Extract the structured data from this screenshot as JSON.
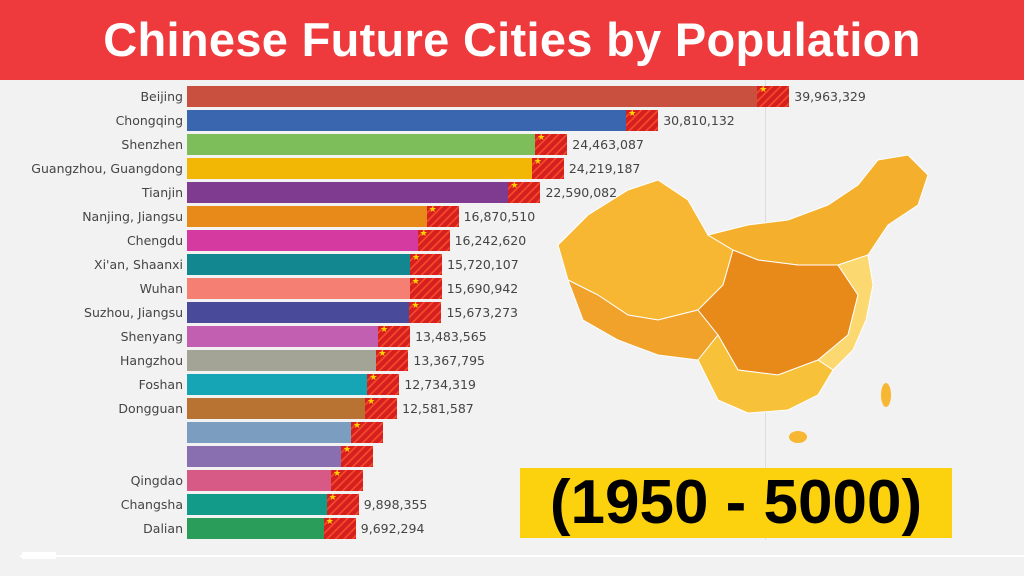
{
  "title": "Chinese Future Cities by Population",
  "period_label": "(1950 - 5000)",
  "chart_data": {
    "type": "bar",
    "orientation": "horizontal",
    "title": "Chinese Future Cities by Population",
    "categories": [
      "Beijing",
      "Chongqing",
      "Shenzhen",
      "Guangzhou, Guangdong",
      "Tianjin",
      "Nanjing, Jiangsu",
      "Chengdu",
      "Xi'an, Shaanxi",
      "Wuhan",
      "Suzhou, Jiangsu",
      "Shenyang",
      "Hangzhou",
      "Foshan",
      "Dongguan",
      "",
      "",
      "Qingdao",
      "Changsha",
      "Dalian"
    ],
    "values": [
      39963329,
      30810132,
      24463087,
      24219187,
      22590082,
      16870510,
      16242620,
      15720107,
      15690942,
      15673273,
      13483565,
      13367795,
      12734319,
      12581587,
      11600000,
      10900000,
      10200000,
      9898355,
      9692294
    ],
    "value_labels": [
      "39,963,329",
      "30,810,132",
      "24,463,087",
      "24,219,187",
      "22,590,082",
      "16,870,510",
      "16,242,620",
      "15,720,107",
      "15,690,942",
      "15,673,273",
      "13,483,565",
      "13,367,795",
      "12,734,319",
      "12,581,587",
      "",
      "",
      "",
      "9,898,355",
      "9,692,294"
    ],
    "colors": [
      "#c9503f",
      "#3a66b0",
      "#7dbd5a",
      "#f2b705",
      "#7f3b8f",
      "#e88a1a",
      "#d43aa0",
      "#13878f",
      "#f47f72",
      "#4a4a9a",
      "#c25fb0",
      "#a3a396",
      "#15a5b5",
      "#b87333",
      "#7b9dbf",
      "#8a6fb0",
      "#d65a85",
      "#139b8a",
      "#2a9d5a"
    ],
    "xlabel": "",
    "ylabel": "",
    "grid": true
  },
  "map_colors": {
    "light": "#f7c23a",
    "mid": "#f0a22a",
    "dark": "#e88a1a",
    "pale": "#fbd870"
  }
}
